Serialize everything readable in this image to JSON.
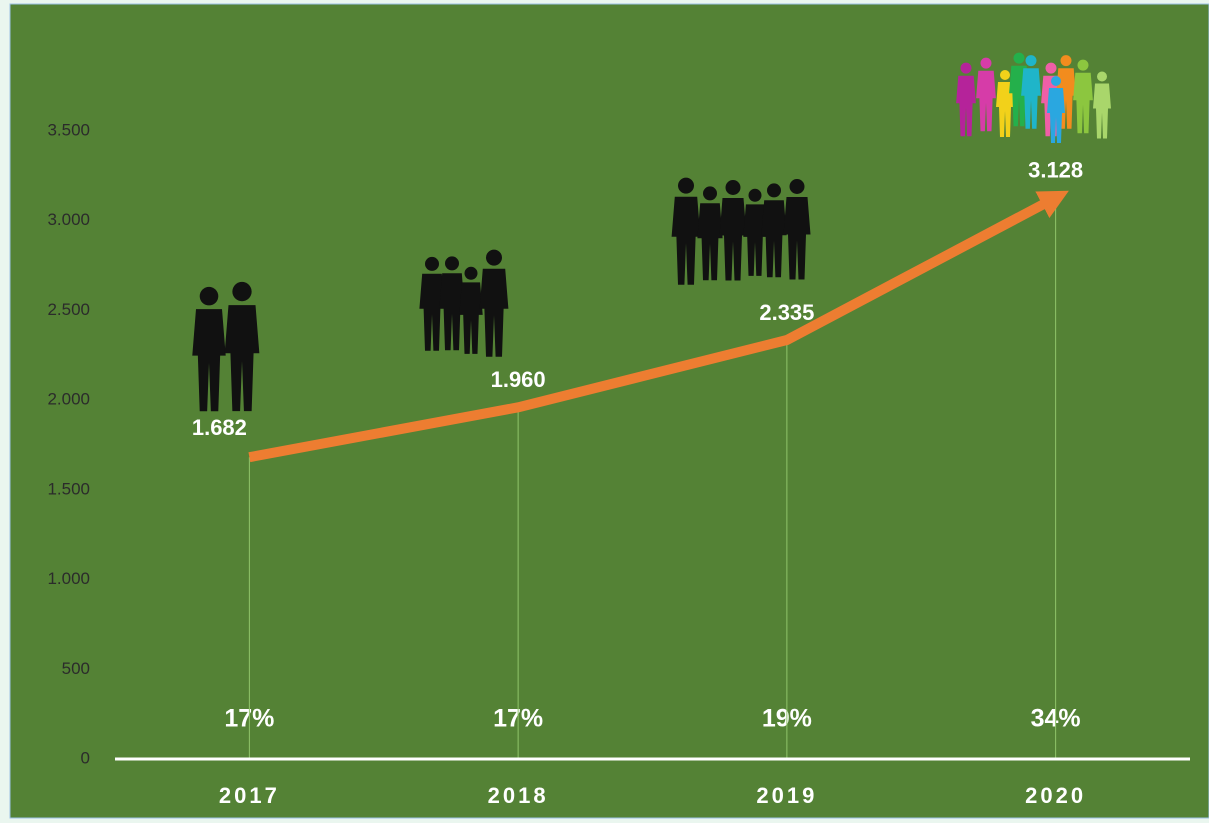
{
  "chart_data": {
    "type": "line",
    "categories": [
      "2017",
      "2018",
      "2019",
      "2020"
    ],
    "series": [
      {
        "color": "#ed7d31",
        "values": [
          1682,
          1960,
          2335,
          3128
        ],
        "value_labels": [
          "1.682",
          "1.960",
          "2.335",
          "3.128"
        ]
      }
    ],
    "annotations": [
      "17%",
      "17%",
      "19%",
      "34%"
    ],
    "ylim": [
      0,
      3500
    ],
    "yticks": [
      0,
      500,
      {
        "value": 1000,
        "label": "1.000"
      },
      {
        "value": 1500,
        "label": "1.500"
      },
      {
        "value": 2000,
        "label": "2.000"
      },
      {
        "value": 2500,
        "label": "2.500"
      },
      {
        "value": 3000,
        "label": "3.000"
      },
      {
        "value": 3500,
        "label": "3.500"
      }
    ],
    "drop_lines": true
  }
}
